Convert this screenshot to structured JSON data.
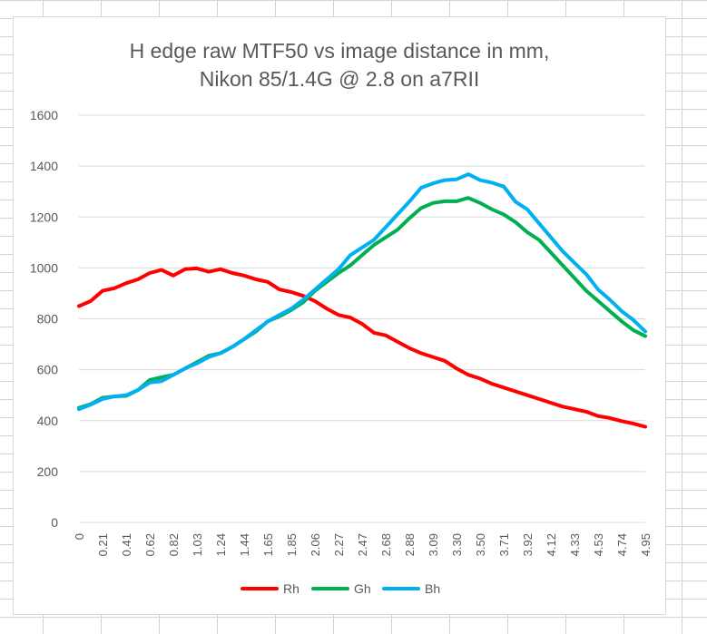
{
  "chart_data": {
    "type": "line",
    "title_line1": "H edge raw MTF50 vs image distance in mm,",
    "title_line2": "Nikon 85/1.4G @ 2.8 on a7RII",
    "xlabel": "",
    "ylabel": "",
    "ylim": [
      0,
      1600
    ],
    "y_ticks": [
      "0",
      "200",
      "400",
      "600",
      "800",
      "1000",
      "1200",
      "1400",
      "1600"
    ],
    "x_tick_labels": [
      "0",
      "0.21",
      "0.41",
      "0.62",
      "0.82",
      "1.03",
      "1.24",
      "1.44",
      "1.65",
      "1.85",
      "2.06",
      "2.27",
      "2.47",
      "2.68",
      "2.88",
      "3.09",
      "3.30",
      "3.50",
      "3.71",
      "3.92",
      "4.12",
      "4.33",
      "4.53",
      "4.74",
      "4.95"
    ],
    "grid": "horizontal",
    "legend_position": "bottom",
    "point_count": 49,
    "series": [
      {
        "name": "Rh",
        "color": "#ff0000",
        "values": [
          850,
          870,
          910,
          920,
          940,
          955,
          980,
          992,
          970,
          995,
          998,
          985,
          995,
          980,
          970,
          955,
          945,
          915,
          905,
          890,
          870,
          840,
          815,
          805,
          780,
          745,
          735,
          710,
          685,
          665,
          650,
          635,
          605,
          580,
          565,
          545,
          530,
          515,
          500,
          485,
          470,
          455,
          445,
          435,
          418,
          410,
          398,
          388,
          376
        ]
      },
      {
        "name": "Gh",
        "color": "#00b050",
        "values": [
          450,
          465,
          490,
          495,
          497,
          520,
          560,
          570,
          580,
          605,
          630,
          655,
          665,
          690,
          720,
          750,
          790,
          810,
          835,
          865,
          910,
          945,
          980,
          1010,
          1050,
          1090,
          1120,
          1150,
          1195,
          1235,
          1255,
          1262,
          1262,
          1275,
          1255,
          1230,
          1210,
          1180,
          1140,
          1110,
          1060,
          1010,
          960,
          910,
          870,
          830,
          790,
          755,
          732
        ]
      },
      {
        "name": "Bh",
        "color": "#00b0f0",
        "values": [
          445,
          463,
          485,
          495,
          500,
          520,
          550,
          555,
          580,
          605,
          625,
          650,
          665,
          690,
          720,
          755,
          790,
          815,
          840,
          875,
          915,
          955,
          995,
          1050,
          1080,
          1110,
          1160,
          1210,
          1260,
          1315,
          1332,
          1345,
          1348,
          1368,
          1345,
          1335,
          1320,
          1260,
          1230,
          1175,
          1120,
          1065,
          1020,
          975,
          915,
          875,
          830,
          795,
          750
        ]
      }
    ]
  }
}
